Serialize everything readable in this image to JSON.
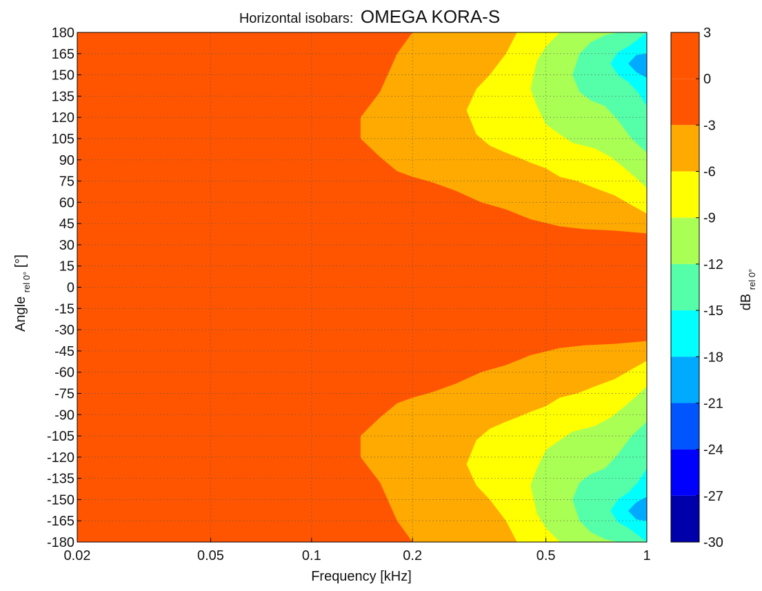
{
  "chart_data": {
    "type": "heatmap",
    "title_prefix": "Horizontal isobars:",
    "title_main": "OMEGA KORA-S",
    "xlabel": "Frequency [kHz]",
    "ylabel_main": "Angle",
    "ylabel_sub": "rel 0°",
    "ylabel_unit": " [°]",
    "colorbar_label_main": "dB",
    "colorbar_label_sub": "rel 0°",
    "x_scale": "log",
    "xlim": [
      0.02,
      1
    ],
    "ylim": [
      -180,
      180
    ],
    "grid": true,
    "x_ticks": [
      {
        "value": 0.02,
        "label": "0.02"
      },
      {
        "value": 0.05,
        "label": "0.05"
      },
      {
        "value": 0.1,
        "label": "0.1"
      },
      {
        "value": 0.2,
        "label": "0.2"
      },
      {
        "value": 0.5,
        "label": "0.5"
      },
      {
        "value": 1,
        "label": "1"
      }
    ],
    "y_ticks": [
      {
        "value": 180,
        "label": "180"
      },
      {
        "value": 165,
        "label": "165"
      },
      {
        "value": 150,
        "label": "150"
      },
      {
        "value": 135,
        "label": "135"
      },
      {
        "value": 120,
        "label": "120"
      },
      {
        "value": 105,
        "label": "105"
      },
      {
        "value": 90,
        "label": "90"
      },
      {
        "value": 75,
        "label": "75"
      },
      {
        "value": 60,
        "label": "60"
      },
      {
        "value": 45,
        "label": "45"
      },
      {
        "value": 30,
        "label": "30"
      },
      {
        "value": 15,
        "label": "15"
      },
      {
        "value": 0,
        "label": "0"
      },
      {
        "value": -15,
        "label": "-15"
      },
      {
        "value": -30,
        "label": "-30"
      },
      {
        "value": -45,
        "label": "-45"
      },
      {
        "value": -60,
        "label": "-60"
      },
      {
        "value": -75,
        "label": "-75"
      },
      {
        "value": -90,
        "label": "-90"
      },
      {
        "value": -105,
        "label": "-105"
      },
      {
        "value": -120,
        "label": "-120"
      },
      {
        "value": -135,
        "label": "-135"
      },
      {
        "value": -150,
        "label": "-150"
      },
      {
        "value": -165,
        "label": "-165"
      },
      {
        "value": -180,
        "label": "-180"
      }
    ],
    "colorbar": {
      "range": [
        -30,
        3
      ],
      "ticks": [
        {
          "value": 3,
          "label": "3"
        },
        {
          "value": 0,
          "label": "0"
        },
        {
          "value": -3,
          "label": "-3"
        },
        {
          "value": -6,
          "label": "-6"
        },
        {
          "value": -9,
          "label": "-9"
        },
        {
          "value": -12,
          "label": "-12"
        },
        {
          "value": -15,
          "label": "-15"
        },
        {
          "value": -18,
          "label": "-18"
        },
        {
          "value": -21,
          "label": "-21"
        },
        {
          "value": -24,
          "label": "-24"
        },
        {
          "value": -27,
          "label": "-27"
        },
        {
          "value": -30,
          "label": "-30"
        }
      ],
      "bands": [
        {
          "min": 0,
          "max": 3,
          "color": "#ff5500"
        },
        {
          "min": -3,
          "max": 0,
          "color": "#ff5500"
        },
        {
          "min": -6,
          "max": -3,
          "color": "#ffaa00"
        },
        {
          "min": -9,
          "max": -6,
          "color": "#ffff00"
        },
        {
          "min": -12,
          "max": -9,
          "color": "#aaff55"
        },
        {
          "min": -15,
          "max": -12,
          "color": "#55ffaa"
        },
        {
          "min": -18,
          "max": -15,
          "color": "#00ffff"
        },
        {
          "min": -21,
          "max": -18,
          "color": "#00aaff"
        },
        {
          "min": -24,
          "max": -21,
          "color": "#0055ff"
        },
        {
          "min": -27,
          "max": -24,
          "color": "#0000ff"
        },
        {
          "min": -30,
          "max": -27,
          "color": "#0000aa"
        }
      ]
    },
    "isobar_regions": [
      {
        "level": "-3 to -6 dB",
        "color": "#ffaa00",
        "freq_khz": [
          0.14,
          0.16,
          0.18,
          0.2,
          0.23,
          0.27,
          0.32,
          0.38,
          0.45,
          0.55,
          0.65,
          0.8,
          1.0
        ],
        "upper_boundary_deg": [
          120,
          138,
          165,
          180,
          180,
          180,
          180,
          180,
          180,
          180,
          180,
          180,
          180
        ],
        "lower_boundary_deg": [
          105,
          92,
          82,
          78,
          74,
          68,
          60,
          55,
          48,
          43,
          41,
          40,
          38
        ]
      },
      {
        "level": "-6 to -9 dB",
        "color": "#ffff00",
        "freq_khz": [
          0.29,
          0.31,
          0.34,
          0.38,
          0.41,
          0.45,
          0.5,
          0.55,
          0.62,
          0.7,
          0.8,
          0.9,
          1.0
        ],
        "upper_boundary_deg": [
          125,
          140,
          150,
          165,
          180,
          180,
          180,
          180,
          180,
          180,
          180,
          180,
          180
        ],
        "lower_boundary_deg": [
          125,
          108,
          100,
          95,
          92,
          88,
          84,
          78,
          75,
          70,
          65,
          58,
          52
        ]
      },
      {
        "level": "-9 to -12 dB",
        "color": "#aaff55",
        "freq_khz": [
          0.45,
          0.47,
          0.5,
          0.55,
          0.6,
          0.65,
          0.7,
          0.78,
          0.85,
          0.92,
          1.0
        ],
        "upper_boundary_deg": [
          140,
          160,
          170,
          180,
          180,
          180,
          180,
          180,
          180,
          180,
          180
        ],
        "lower_boundary_deg": [
          140,
          128,
          115,
          108,
          102,
          100,
          98,
          92,
          85,
          78,
          70
        ]
      },
      {
        "level": "-12 to -15 dB",
        "color": "#55ffaa",
        "freq_khz": [
          0.6,
          0.63,
          0.68,
          0.75,
          0.82,
          0.9,
          1.0
        ],
        "upper_boundary_deg": [
          150,
          165,
          173,
          178,
          180,
          180,
          180
        ],
        "lower_boundary_deg": [
          150,
          138,
          132,
          128,
          118,
          105,
          95
        ]
      },
      {
        "level": "-15 to -18 dB",
        "color": "#00ffff",
        "freq_khz": [
          0.78,
          0.82,
          0.88,
          0.94,
          1.0
        ],
        "upper_boundary_deg": [
          158,
          166,
          170,
          175,
          180
        ],
        "lower_boundary_deg": [
          158,
          150,
          145,
          138,
          128
        ]
      },
      {
        "level": "-18 to -21 dB",
        "color": "#00aaff",
        "freq_khz": [
          0.88,
          0.93,
          1.0
        ],
        "upper_boundary_deg": [
          158,
          164,
          165
        ],
        "lower_boundary_deg": [
          158,
          152,
          148
        ]
      }
    ],
    "symmetry": "mirrored about 0°"
  }
}
